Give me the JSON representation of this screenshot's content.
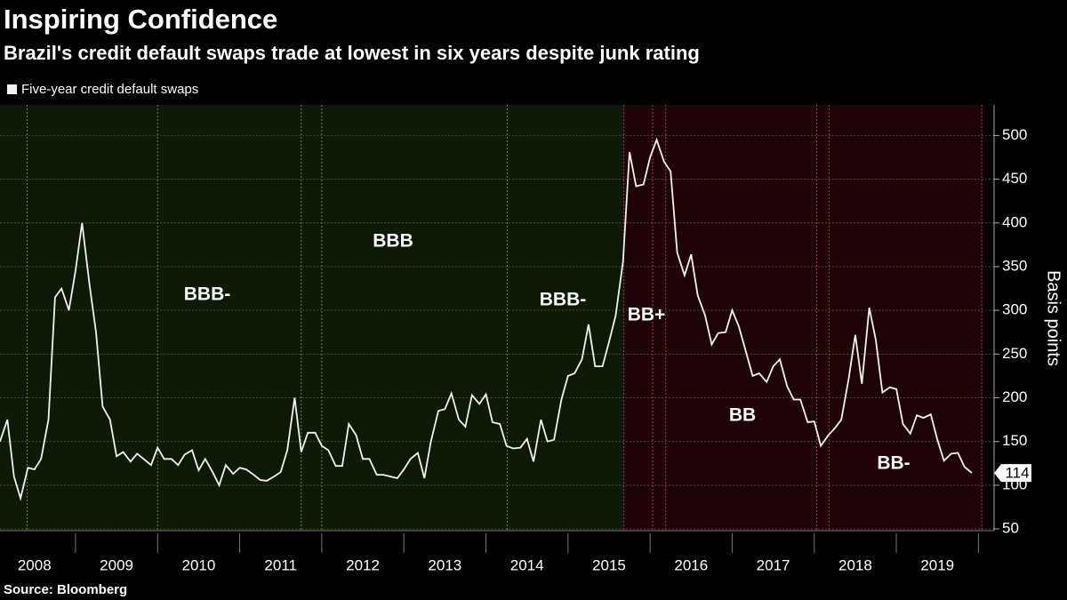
{
  "chart_data": {
    "type": "line",
    "title": "Inspiring Confidence",
    "subtitle": "Brazil's credit default swaps trade at lowest in six years despite junk rating",
    "y_label": "Basis points",
    "source": "Source: Bloomberg",
    "x": [
      2008.08,
      2008.17,
      2008.25,
      2008.33,
      2008.42,
      2008.5,
      2008.58,
      2008.67,
      2008.75,
      2008.83,
      2008.92,
      2009.0,
      2009.08,
      2009.17,
      2009.25,
      2009.33,
      2009.42,
      2009.5,
      2009.58,
      2009.67,
      2009.75,
      2009.83,
      2009.92,
      2010.0,
      2010.08,
      2010.17,
      2010.25,
      2010.33,
      2010.42,
      2010.5,
      2010.58,
      2010.67,
      2010.75,
      2010.83,
      2010.92,
      2011.0,
      2011.08,
      2011.17,
      2011.25,
      2011.33,
      2011.42,
      2011.5,
      2011.58,
      2011.67,
      2011.75,
      2011.83,
      2011.92,
      2012.0,
      2012.08,
      2012.17,
      2012.25,
      2012.33,
      2012.42,
      2012.5,
      2012.58,
      2012.67,
      2012.75,
      2012.83,
      2012.92,
      2013.0,
      2013.08,
      2013.17,
      2013.25,
      2013.33,
      2013.42,
      2013.5,
      2013.58,
      2013.67,
      2013.75,
      2013.83,
      2013.92,
      2014.0,
      2014.08,
      2014.17,
      2014.25,
      2014.33,
      2014.42,
      2014.5,
      2014.58,
      2014.67,
      2014.75,
      2014.83,
      2014.92,
      2015.0,
      2015.08,
      2015.17,
      2015.25,
      2015.33,
      2015.42,
      2015.5,
      2015.58,
      2015.67,
      2015.75,
      2015.83,
      2015.92,
      2016.0,
      2016.08,
      2016.17,
      2016.25,
      2016.33,
      2016.42,
      2016.5,
      2016.58,
      2016.67,
      2016.75,
      2016.83,
      2016.92,
      2017.0,
      2017.08,
      2017.17,
      2017.25,
      2017.33,
      2017.42,
      2017.5,
      2017.58,
      2017.67,
      2017.75,
      2017.83,
      2017.92,
      2018.0,
      2018.08,
      2018.17,
      2018.25,
      2018.33,
      2018.42,
      2018.5,
      2018.58,
      2018.67,
      2018.75,
      2018.83,
      2018.92,
      2019.0,
      2019.08,
      2019.17,
      2019.25,
      2019.33,
      2019.42,
      2019.5,
      2019.58,
      2019.67,
      2019.75,
      2019.83,
      2019.92
    ],
    "series": [
      {
        "name": "Five-year credit default swaps",
        "color": "#f2f2f2",
        "values": [
          150,
          175,
          110,
          85,
          120,
          118,
          130,
          175,
          315,
          325,
          300,
          345,
          400,
          330,
          275,
          190,
          175,
          133,
          138,
          127,
          136,
          130,
          123,
          143,
          130,
          130,
          123,
          135,
          140,
          117,
          130,
          115,
          100,
          123,
          113,
          120,
          118,
          112,
          106,
          105,
          110,
          115,
          140,
          200,
          138,
          160,
          160,
          145,
          140,
          122,
          122,
          170,
          157,
          130,
          130,
          112,
          112,
          110,
          108,
          118,
          130,
          137,
          108,
          150,
          185,
          187,
          205,
          175,
          167,
          203,
          193,
          204,
          172,
          170,
          145,
          142,
          143,
          153,
          127,
          175,
          150,
          152,
          198,
          225,
          228,
          244,
          284,
          236,
          236,
          264,
          294,
          356,
          481,
          442,
          444,
          475,
          495,
          470,
          459,
          366,
          340,
          364,
          317,
          294,
          261,
          274,
          275,
          300,
          282,
          252,
          225,
          228,
          218,
          236,
          244,
          213,
          198,
          198,
          172,
          173,
          145,
          157,
          165,
          175,
          222,
          272,
          216,
          303,
          266,
          206,
          212,
          210,
          170,
          159,
          180,
          177,
          181,
          152,
          128,
          136,
          137,
          121,
          114
        ]
      }
    ],
    "xlim": [
      2008.08,
      2020.05
    ],
    "ylim": [
      48,
      535
    ],
    "yticks": [
      50,
      100,
      150,
      200,
      250,
      300,
      350,
      400,
      450,
      500
    ],
    "xticks": [
      {
        "value": 2008.5,
        "label": "2008"
      },
      {
        "value": 2009.5,
        "label": "2009"
      },
      {
        "value": 2010.5,
        "label": "2010"
      },
      {
        "value": 2011.5,
        "label": "2011"
      },
      {
        "value": 2012.5,
        "label": "2012"
      },
      {
        "value": 2013.5,
        "label": "2013"
      },
      {
        "value": 2014.5,
        "label": "2014"
      },
      {
        "value": 2015.5,
        "label": "2015"
      },
      {
        "value": 2016.5,
        "label": "2016"
      },
      {
        "value": 2017.5,
        "label": "2017"
      },
      {
        "value": 2018.5,
        "label": "2018"
      },
      {
        "value": 2019.5,
        "label": "2019"
      }
    ],
    "grid": true,
    "periods": [
      {
        "from": 2008.08,
        "to": 2015.68,
        "color": "#0f1a06"
      },
      {
        "from": 2015.68,
        "to": 2020.05,
        "color": "#1e0409"
      }
    ],
    "rating_changes": [
      {
        "x": 2008.41,
        "color": "#5f8f2a"
      },
      {
        "x": 2010.0,
        "color": "#5f8f2a"
      },
      {
        "x": 2011.75,
        "color": "#5f8f2a"
      },
      {
        "x": 2012.0,
        "color": "#5f8f2a"
      },
      {
        "x": 2014.26,
        "color": "#5f8f2a"
      },
      {
        "x": 2015.68,
        "color": "#b0304a"
      },
      {
        "x": 2016.03,
        "color": "#b0304a"
      },
      {
        "x": 2016.19,
        "color": "#b0304a"
      },
      {
        "x": 2018.03,
        "color": "#b0304a"
      },
      {
        "x": 2018.18,
        "color": "#b0304a"
      },
      {
        "x": 2020.04,
        "color": "#b0304a"
      }
    ],
    "annotations": [
      {
        "text": "BBB-",
        "color": "#8ccf1e"
      },
      {
        "text": "BBB",
        "color": "#8ccf1e"
      },
      {
        "text": "BBB-",
        "color": "#8ccf1e"
      },
      {
        "text": "BB+",
        "color": "#ee3a55"
      },
      {
        "text": "BB",
        "color": "#ee3a55"
      },
      {
        "text": "BB-",
        "color": "#ee3a55"
      }
    ]
  }
}
